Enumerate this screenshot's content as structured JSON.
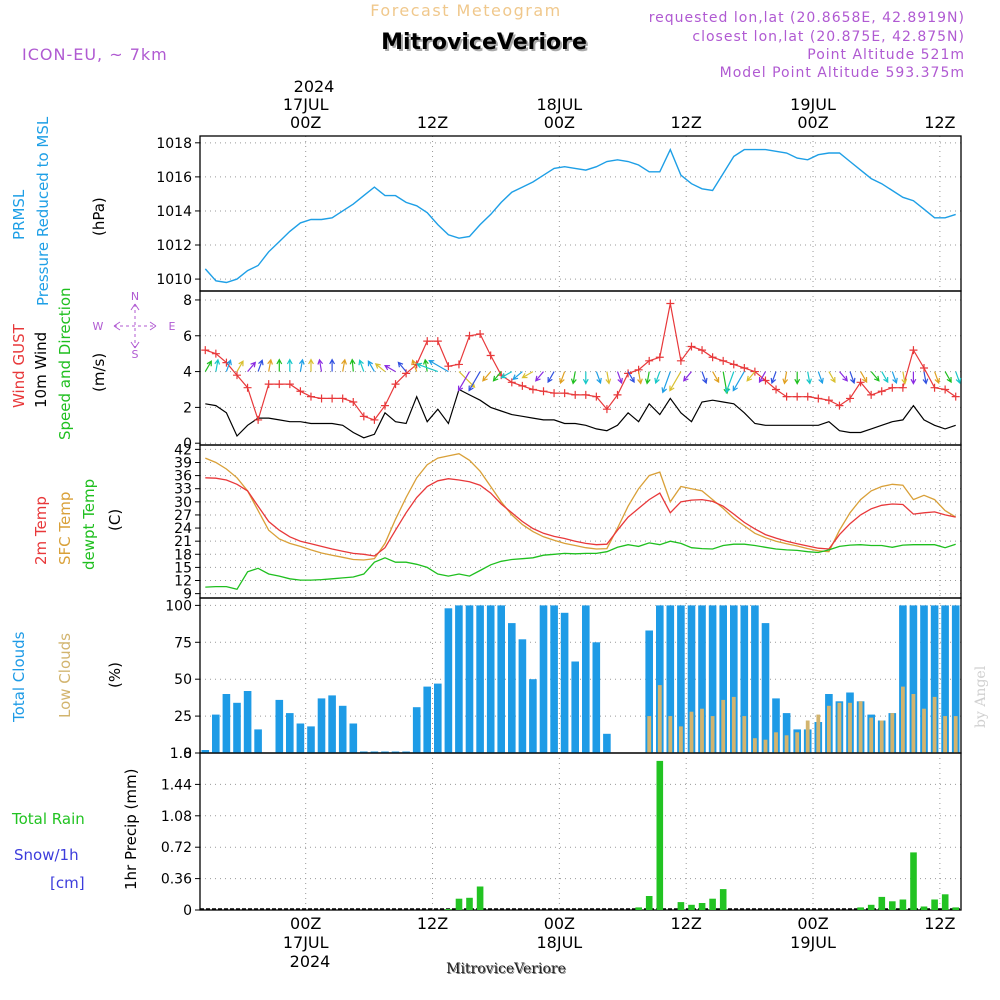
{
  "header": {
    "forecast_title": "Forecast Meteogram",
    "location": "MitroviceVeriore",
    "model": "ICON-EU, ~ 7km",
    "requested": "requested lon,lat (20.8658E, 42.8919N)",
    "closest": "closest lon,lat (20.875E, 42.875N)",
    "altitude": "Point Altitude 521m",
    "model_altitude": "Model Point Altitude 593.375m",
    "watermark": "by Angel",
    "footer": "MitroviceVeriore"
  },
  "time_axis": {
    "hours": 72,
    "year": "2024",
    "ticks": [
      {
        "hour": 10,
        "label": "00Z",
        "date": "17JUL"
      },
      {
        "hour": 22,
        "label": "12Z"
      },
      {
        "hour": 34,
        "label": "00Z",
        "date": "18JUL"
      },
      {
        "hour": 46,
        "label": "12Z"
      },
      {
        "hour": 58,
        "label": "00Z",
        "date": "19JUL"
      },
      {
        "hour": 70,
        "label": "12Z"
      }
    ]
  },
  "colors": {
    "pressure": "#1e9fe6",
    "gust": "#e8383a",
    "wind": "#000000",
    "direction": "#1fbf1f",
    "temp2m": "#e8383a",
    "sfctemp": "#d9a038",
    "dewpoint": "#1fbf1f",
    "total_clouds": "#1e9be6",
    "low_clouds": "#d2b46e",
    "rain": "#22c322",
    "snow": "#3c3cdc",
    "header_purple": "#b05ad2",
    "header_orange": "#f0c88c"
  },
  "panels": {
    "pressure": {
      "labels": [
        "PRMSL",
        "Pressure Reduced to MSL"
      ],
      "unit": "(hPa)"
    },
    "wind": {
      "labels": [
        "Wind GUST",
        "10m Wind",
        "Speed and Direction"
      ],
      "unit": "(m/s)",
      "compass": {
        "n": "N",
        "s": "S",
        "w": "W",
        "e": "E"
      }
    },
    "temperature": {
      "labels": [
        "2m Temp",
        "SFC Temp",
        "dewpt Temp"
      ],
      "unit": "(C)"
    },
    "clouds": {
      "labels": [
        "Total Clouds",
        "Low Clouds"
      ],
      "unit": "(%)"
    },
    "precip": {
      "labels": [
        "Total Rain",
        "Snow/1h",
        "[cm]"
      ],
      "axis_title": "1hr Precip (mm)"
    }
  },
  "chart_data": [
    {
      "type": "line",
      "title": "PRMSL Pressure Reduced to MSL",
      "ylabel": "(hPa)",
      "ylim": [
        1009.3,
        1018.4
      ],
      "yticks": [
        1010,
        1012,
        1014,
        1016,
        1018
      ],
      "series": [
        {
          "name": "PRMSL",
          "values": [
            1010.6,
            1009.9,
            1009.8,
            1010.0,
            1010.5,
            1010.8,
            1011.6,
            1012.2,
            1012.8,
            1013.3,
            1013.5,
            1013.5,
            1013.6,
            1014.0,
            1014.4,
            1014.9,
            1015.4,
            1014.9,
            1014.9,
            1014.5,
            1014.3,
            1013.9,
            1013.2,
            1012.6,
            1012.4,
            1012.5,
            1013.2,
            1013.8,
            1014.5,
            1015.1,
            1015.4,
            1015.7,
            1016.1,
            1016.5,
            1016.6,
            1016.5,
            1016.4,
            1016.6,
            1016.9,
            1017.0,
            1016.9,
            1016.7,
            1016.3,
            1016.3,
            1017.6,
            1016.1,
            1015.6,
            1015.3,
            1015.2,
            1016.2,
            1017.2,
            1017.6,
            1017.6,
            1017.6,
            1017.5,
            1017.4,
            1017.1,
            1017.0,
            1017.3,
            1017.4,
            1017.4,
            1016.9,
            1016.4,
            1015.9,
            1015.6,
            1015.2,
            1014.8,
            1014.6,
            1014.1,
            1013.6,
            1013.6,
            1013.8
          ]
        }
      ]
    },
    {
      "type": "line",
      "title": "Wind GUST / 10m Wind Speed and Direction",
      "ylabel": "(m/s)",
      "ylim": [
        -0.1,
        8.5
      ],
      "yticks": [
        0,
        2,
        4,
        6,
        8
      ],
      "series": [
        {
          "name": "Wind GUST",
          "values": [
            5.2,
            5.0,
            4.5,
            3.8,
            3.1,
            1.3,
            3.3,
            3.3,
            3.3,
            2.9,
            2.6,
            2.5,
            2.5,
            2.5,
            2.3,
            1.5,
            1.3,
            2.1,
            3.3,
            3.9,
            4.4,
            5.7,
            5.7,
            4.3,
            4.4,
            6.0,
            6.1,
            4.9,
            3.8,
            3.4,
            3.2,
            3.0,
            2.9,
            2.8,
            2.8,
            2.7,
            2.7,
            2.6,
            1.9,
            2.7,
            3.9,
            4.1,
            4.6,
            4.8,
            7.8,
            4.6,
            5.4,
            5.2,
            4.8,
            4.6,
            4.4,
            4.2,
            4.0,
            3.5,
            3.0,
            2.6,
            2.6,
            2.6,
            2.5,
            2.4,
            2.1,
            2.5,
            3.4,
            2.7,
            2.9,
            3.1,
            3.1,
            5.2,
            4.2,
            3.1,
            3.0,
            2.6
          ]
        },
        {
          "name": "10m Wind",
          "values": [
            2.2,
            2.1,
            1.7,
            0.4,
            1.0,
            1.4,
            1.4,
            1.3,
            1.2,
            1.2,
            1.1,
            1.1,
            1.1,
            1.0,
            0.6,
            0.3,
            0.5,
            1.7,
            1.2,
            1.1,
            2.6,
            1.2,
            1.9,
            1.1,
            3.0,
            2.7,
            2.4,
            2.0,
            1.8,
            1.6,
            1.5,
            1.4,
            1.3,
            1.3,
            1.1,
            1.1,
            1.0,
            0.8,
            0.7,
            1.0,
            1.7,
            1.2,
            2.2,
            1.6,
            2.5,
            1.7,
            1.2,
            2.3,
            2.4,
            2.3,
            2.2,
            1.7,
            1.1,
            1.0,
            1.0,
            1.0,
            1.0,
            1.0,
            1.0,
            1.2,
            0.7,
            0.6,
            0.6,
            0.8,
            1.0,
            1.2,
            1.3,
            2.1,
            1.3,
            1.0,
            0.8,
            1.0
          ]
        }
      ]
    },
    {
      "type": "line",
      "title": "2m Temp / SFC Temp / dewpt Temp",
      "ylabel": "(C)",
      "ylim": [
        8,
        43
      ],
      "yticks": [
        9,
        12,
        15,
        18,
        21,
        24,
        27,
        30,
        33,
        36,
        39,
        42
      ],
      "series": [
        {
          "name": "2m Temp",
          "values": [
            35.5,
            35.4,
            35.0,
            34.0,
            32.5,
            29.0,
            25.5,
            23.5,
            22.0,
            21.0,
            20.4,
            19.8,
            19.2,
            18.7,
            18.2,
            18.0,
            17.6,
            19.5,
            23.5,
            27.5,
            31.0,
            33.5,
            34.8,
            35.3,
            35.0,
            34.6,
            33.8,
            32.0,
            29.5,
            27.5,
            25.5,
            23.9,
            22.8,
            22.1,
            21.6,
            21.0,
            20.5,
            20.2,
            20.3,
            23.5,
            26.5,
            28.5,
            30.5,
            32.0,
            27.5,
            30.0,
            30.4,
            30.5,
            30.1,
            29.0,
            27.2,
            25.3,
            23.8,
            22.5,
            21.7,
            21.0,
            20.4,
            19.9,
            19.4,
            19.2,
            22.5,
            25.0,
            27.0,
            28.4,
            29.2,
            29.5,
            29.4,
            27.2,
            27.5,
            27.7,
            27.0,
            26.5
          ]
        },
        {
          "name": "SFC Temp",
          "values": [
            40.0,
            39.0,
            37.5,
            35.5,
            32.5,
            28.0,
            23.5,
            21.5,
            20.5,
            19.8,
            19.0,
            18.3,
            17.8,
            17.3,
            16.8,
            16.7,
            17.0,
            20.5,
            26.0,
            31.0,
            35.5,
            38.5,
            40.0,
            40.5,
            41.0,
            39.5,
            37.0,
            33.5,
            30.0,
            27.0,
            24.8,
            23.2,
            22.0,
            21.2,
            20.5,
            20.0,
            19.5,
            19.2,
            19.3,
            24.0,
            29.0,
            33.0,
            36.0,
            36.8,
            30.0,
            33.5,
            33.0,
            32.5,
            30.5,
            28.5,
            26.2,
            24.5,
            22.8,
            21.8,
            21.0,
            20.4,
            19.9,
            19.3,
            18.8,
            18.6,
            23.5,
            27.5,
            30.5,
            32.5,
            33.5,
            34.0,
            33.8,
            30.5,
            31.5,
            30.5,
            28.0,
            26.5
          ]
        },
        {
          "name": "dewpt Temp",
          "values": [
            10.5,
            10.6,
            10.6,
            10.0,
            14.0,
            14.8,
            13.5,
            13.0,
            12.4,
            12.1,
            12.1,
            12.2,
            12.4,
            12.6,
            12.8,
            13.5,
            16.2,
            17.2,
            16.2,
            16.2,
            15.7,
            15.0,
            13.5,
            13.0,
            13.5,
            13.0,
            14.3,
            15.6,
            16.4,
            16.8,
            17.0,
            17.2,
            17.8,
            18.0,
            18.2,
            18.1,
            18.2,
            18.2,
            18.6,
            19.6,
            20.2,
            19.8,
            20.6,
            20.2,
            21.0,
            20.5,
            19.5,
            19.3,
            19.2,
            20.0,
            20.3,
            20.3,
            20.0,
            19.6,
            19.2,
            19.0,
            18.9,
            18.6,
            18.4,
            19.0,
            19.8,
            20.1,
            20.2,
            20.0,
            20.0,
            19.6,
            20.1,
            20.2,
            20.2,
            20.2,
            19.5,
            20.3
          ]
        }
      ]
    },
    {
      "type": "bar",
      "title": "Total Clouds / Low Clouds",
      "ylabel": "(%)",
      "ylim": [
        0,
        105
      ],
      "yticks": [
        0,
        25,
        50,
        75,
        100
      ],
      "series": [
        {
          "name": "Total Clouds",
          "values": [
            2,
            26,
            40,
            34,
            42,
            16,
            0,
            36,
            27,
            20,
            18,
            37,
            39,
            32,
            20,
            1,
            1,
            1,
            1,
            1,
            31,
            45,
            47,
            98,
            100,
            100,
            100,
            100,
            100,
            88,
            77,
            50,
            100,
            100,
            95,
            62,
            100,
            75,
            13,
            0,
            0,
            0,
            83,
            100,
            100,
            100,
            100,
            100,
            100,
            100,
            100,
            100,
            100,
            88,
            37,
            27,
            16,
            16,
            21,
            40,
            35,
            41,
            35,
            26,
            22,
            27,
            100,
            100,
            100,
            100,
            100,
            100
          ]
        },
        {
          "name": "Low Clouds",
          "values": [
            0,
            0,
            0,
            0,
            0,
            0,
            0,
            0,
            0,
            0,
            0,
            0,
            0,
            0,
            0,
            0,
            0,
            0,
            0,
            0,
            0,
            0,
            0,
            0,
            0,
            0,
            0,
            0,
            0,
            0,
            0,
            0,
            0,
            0,
            0,
            0,
            0,
            0,
            0,
            0,
            0,
            0,
            25,
            46,
            25,
            18,
            28,
            30,
            25,
            36,
            38,
            25,
            10,
            9,
            14,
            12,
            14,
            22,
            26,
            32,
            34,
            34,
            35,
            24,
            22,
            27,
            45,
            40,
            30,
            38,
            25,
            25
          ]
        }
      ]
    },
    {
      "type": "bar",
      "title": "1hr Precip (mm)",
      "ylabel": "1hr Precip (mm)",
      "ylim": [
        0,
        1.8
      ],
      "yticks": [
        0,
        0.36,
        0.72,
        1.08,
        1.44,
        1.8
      ],
      "ytick_labels": [
        "0",
        "0.36",
        "0.72",
        "1.08",
        "1.44",
        "1.8"
      ],
      "series": [
        {
          "name": "Total Rain",
          "values": [
            0,
            0,
            0,
            0,
            0,
            0,
            0,
            0,
            0,
            0,
            0,
            0,
            0,
            0,
            0,
            0,
            0,
            0,
            0,
            0,
            0,
            0,
            0,
            0.01,
            0.13,
            0.14,
            0.27,
            0,
            0,
            0,
            0,
            0,
            0,
            0,
            0,
            0,
            0,
            0,
            0,
            0,
            0,
            0.03,
            0.16,
            1.71,
            0,
            0.09,
            0.06,
            0.08,
            0.13,
            0.24,
            0,
            0,
            0,
            0,
            0,
            0,
            0,
            0,
            0,
            0,
            0,
            0,
            0.03,
            0.06,
            0.15,
            0.1,
            0.12,
            0.66,
            0.04,
            0.12,
            0.18,
            0.03
          ]
        },
        {
          "name": "Snow/1h",
          "values": [
            0,
            0,
            0,
            0,
            0,
            0,
            0,
            0,
            0,
            0,
            0,
            0,
            0,
            0,
            0,
            0,
            0,
            0,
            0,
            0,
            0,
            0,
            0,
            0,
            0,
            0,
            0,
            0,
            0,
            0,
            0,
            0,
            0,
            0,
            0,
            0,
            0,
            0,
            0,
            0,
            0,
            0,
            0,
            0,
            0,
            0,
            0,
            0,
            0,
            0,
            0,
            0,
            0,
            0,
            0,
            0,
            0,
            0,
            0,
            0,
            0,
            0,
            0,
            0,
            0,
            0,
            0,
            0,
            0,
            0,
            0,
            0
          ]
        }
      ]
    }
  ]
}
